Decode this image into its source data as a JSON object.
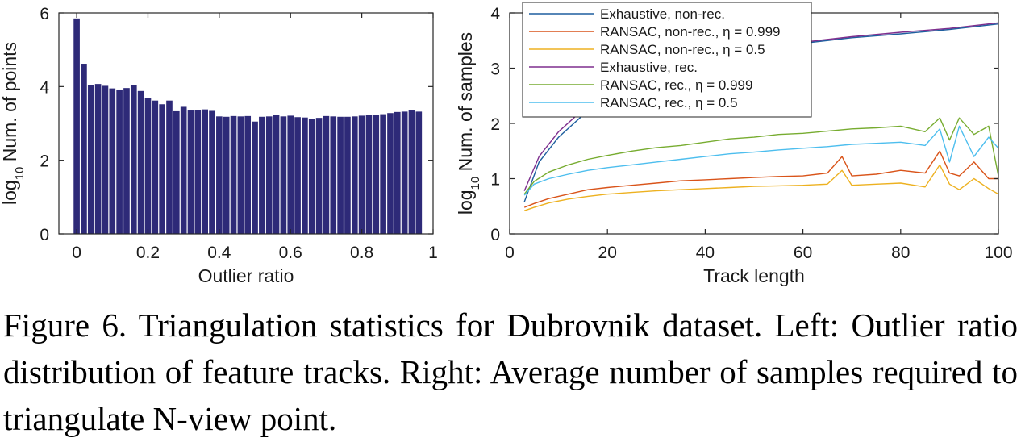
{
  "caption": "Figure 6. Triangulation statistics for Dubrovnik dataset. Left: Outlier ratio distribution of feature tracks. Right: Average number of samples required to triangulate N-view point.",
  "chart_data": [
    {
      "type": "bar",
      "xlabel": "Outlier ratio",
      "ylabel_prefix": "log",
      "ylabel_sub": "10",
      "ylabel_suffix": " Num. of points",
      "xlim": [
        -0.05,
        1.0
      ],
      "ylim": [
        0,
        6
      ],
      "xticks": [
        0,
        0.2,
        0.4,
        0.6,
        0.8,
        1
      ],
      "xtick_labels": [
        "0",
        "0.2",
        "0.4",
        "0.6",
        "0.8",
        "1"
      ],
      "yticks": [
        0,
        2,
        4,
        6
      ],
      "ytick_labels": [
        "0",
        "2",
        "4",
        "6"
      ],
      "bar_color": "#2e2a78",
      "bar_width": 0.02,
      "x": [
        0.0,
        0.02,
        0.04,
        0.06,
        0.08,
        0.1,
        0.12,
        0.14,
        0.16,
        0.18,
        0.2,
        0.22,
        0.24,
        0.26,
        0.28,
        0.3,
        0.32,
        0.34,
        0.36,
        0.38,
        0.4,
        0.42,
        0.44,
        0.46,
        0.48,
        0.5,
        0.52,
        0.54,
        0.56,
        0.58,
        0.6,
        0.62,
        0.64,
        0.66,
        0.68,
        0.7,
        0.72,
        0.74,
        0.76,
        0.78,
        0.8,
        0.82,
        0.84,
        0.86,
        0.88,
        0.9,
        0.92,
        0.94,
        0.96
      ],
      "values": [
        5.85,
        4.62,
        4.05,
        4.07,
        4.02,
        3.95,
        3.92,
        3.96,
        4.05,
        3.88,
        3.68,
        3.62,
        3.52,
        3.62,
        3.33,
        3.45,
        3.35,
        3.37,
        3.38,
        3.34,
        3.19,
        3.18,
        3.2,
        3.19,
        3.2,
        3.05,
        3.18,
        3.19,
        3.22,
        3.19,
        3.21,
        3.17,
        3.16,
        3.13,
        3.15,
        3.2,
        3.19,
        3.18,
        3.18,
        3.19,
        3.21,
        3.22,
        3.24,
        3.25,
        3.28,
        3.31,
        3.32,
        3.35,
        3.32
      ]
    },
    {
      "type": "line",
      "xlabel": "Track length",
      "ylabel_prefix": "log",
      "ylabel_sub": "10",
      "ylabel_suffix": " Num. of samples",
      "xlim": [
        0,
        100
      ],
      "ylim": [
        0,
        4
      ],
      "xticks": [
        0,
        20,
        40,
        60,
        80,
        100
      ],
      "xtick_labels": [
        "0",
        "20",
        "40",
        "60",
        "80",
        "100"
      ],
      "yticks": [
        0,
        1,
        2,
        3,
        4
      ],
      "ytick_labels": [
        "0",
        "1",
        "2",
        "3",
        "4"
      ],
      "legend_position": "top-left",
      "grid": false,
      "series": [
        {
          "name": "Exhaustive, non-rec.",
          "color": "#1f5f9f",
          "x": [
            3,
            6,
            10,
            15,
            20,
            30,
            40,
            50,
            60,
            70,
            80,
            90,
            100
          ],
          "values": [
            0.58,
            1.3,
            1.75,
            2.15,
            2.45,
            2.85,
            3.1,
            3.3,
            3.45,
            3.55,
            3.62,
            3.7,
            3.8
          ]
        },
        {
          "name": "RANSAC, non-rec., η = 0.999",
          "color": "#d9541a",
          "x": [
            3,
            5,
            8,
            12,
            16,
            20,
            25,
            30,
            35,
            40,
            45,
            50,
            55,
            60,
            65,
            68,
            70,
            75,
            80,
            85,
            88,
            90,
            92,
            95,
            98,
            100
          ],
          "values": [
            0.48,
            0.55,
            0.64,
            0.72,
            0.8,
            0.84,
            0.88,
            0.92,
            0.96,
            0.98,
            1.0,
            1.02,
            1.04,
            1.05,
            1.1,
            1.4,
            1.05,
            1.08,
            1.15,
            1.1,
            1.5,
            1.1,
            1.05,
            1.3,
            1.0,
            1.0
          ]
        },
        {
          "name": "RANSAC, non-rec., η = 0.5",
          "color": "#edb120",
          "x": [
            3,
            5,
            8,
            12,
            16,
            20,
            25,
            30,
            35,
            40,
            45,
            50,
            55,
            60,
            65,
            68,
            70,
            75,
            80,
            85,
            88,
            90,
            92,
            95,
            98,
            100
          ],
          "values": [
            0.42,
            0.48,
            0.56,
            0.63,
            0.68,
            0.72,
            0.75,
            0.78,
            0.8,
            0.82,
            0.84,
            0.86,
            0.87,
            0.88,
            0.9,
            1.15,
            0.88,
            0.9,
            0.92,
            0.85,
            1.25,
            0.9,
            0.8,
            1.0,
            0.82,
            0.72
          ]
        },
        {
          "name": "Exhaustive, rec.",
          "color": "#7e2f8e",
          "x": [
            3,
            6,
            10,
            15,
            20,
            30,
            40,
            50,
            60,
            70,
            80,
            90,
            100
          ],
          "values": [
            0.78,
            1.4,
            1.85,
            2.25,
            2.5,
            2.9,
            3.13,
            3.32,
            3.47,
            3.57,
            3.65,
            3.72,
            3.82
          ]
        },
        {
          "name": "RANSAC, rec., η = 0.999",
          "color": "#77ac30",
          "x": [
            3,
            5,
            8,
            12,
            16,
            20,
            25,
            30,
            35,
            40,
            45,
            50,
            55,
            60,
            65,
            70,
            75,
            80,
            85,
            88,
            90,
            92,
            95,
            98,
            100
          ],
          "values": [
            0.72,
            0.95,
            1.12,
            1.25,
            1.35,
            1.42,
            1.5,
            1.56,
            1.6,
            1.66,
            1.72,
            1.75,
            1.8,
            1.82,
            1.86,
            1.9,
            1.92,
            1.95,
            1.85,
            2.1,
            1.7,
            2.1,
            1.8,
            1.95,
            1.05
          ]
        },
        {
          "name": "RANSAC, rec., η = 0.5",
          "color": "#4dbeee",
          "x": [
            3,
            5,
            8,
            12,
            16,
            20,
            25,
            30,
            35,
            40,
            45,
            50,
            55,
            60,
            65,
            70,
            75,
            80,
            85,
            88,
            90,
            92,
            95,
            98,
            100
          ],
          "values": [
            0.7,
            0.9,
            1.0,
            1.08,
            1.15,
            1.2,
            1.25,
            1.3,
            1.35,
            1.4,
            1.45,
            1.48,
            1.52,
            1.55,
            1.58,
            1.62,
            1.64,
            1.66,
            1.6,
            1.9,
            1.3,
            1.95,
            1.4,
            1.75,
            1.55
          ]
        }
      ]
    }
  ]
}
